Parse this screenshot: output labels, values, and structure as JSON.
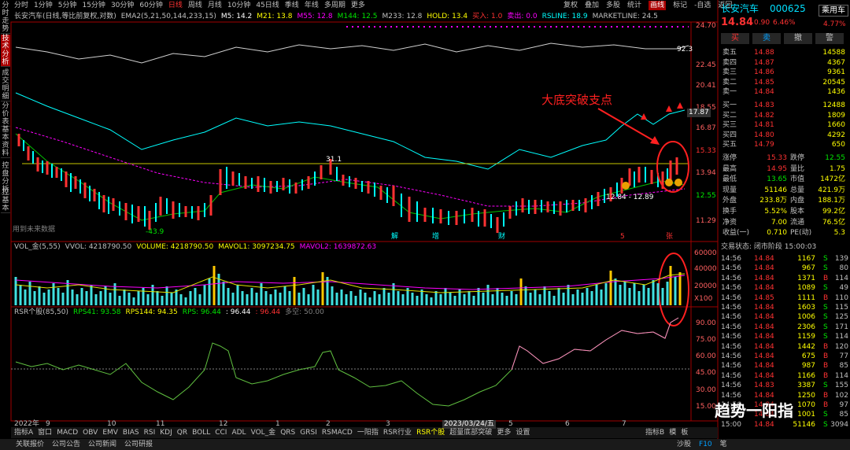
{
  "sidebar": [
    "分时走势",
    "技术分析",
    "成交明细",
    "分价表",
    "基本资料",
    "控盘分析",
    "控基本"
  ],
  "toolbar": {
    "left": [
      "分时",
      "1分钟",
      "5分钟",
      "15分钟",
      "30分钟",
      "60分钟",
      "日线",
      "周线",
      "月线",
      "10分钟",
      "45日线",
      "季线",
      "年线",
      "多周期",
      "更多"
    ],
    "right": [
      "复权",
      "叠加",
      "多股",
      "统计",
      "画线",
      "标记",
      "-自选",
      "返回"
    ]
  },
  "indicator_line": [
    {
      "text": "长安汽车(日线,等比前复权,对数)",
      "color": "#c0c0c0"
    },
    {
      "text": "EMA2(5,21,50,144,233,15)",
      "color": "#c0c0c0"
    },
    {
      "text": "M5: 14.2",
      "color": "#ffffff"
    },
    {
      "text": "M21: 13.8",
      "color": "#ffff00"
    },
    {
      "text": "M55: 12.8",
      "color": "#ff00ff"
    },
    {
      "text": "M144: 12.5",
      "color": "#00e600"
    },
    {
      "text": "M233: 12.8",
      "color": "#c0c0c0"
    },
    {
      "text": "HOLD: 13.4",
      "color": "#ffff00"
    },
    {
      "text": "买入: 1.0",
      "color": "#ff3232"
    },
    {
      "text": "卖出: 0.0",
      "color": "#ff00ff"
    },
    {
      "text": "RSLINE: 18.9",
      "color": "#00ffff"
    },
    {
      "text": "MARKETLINE: 24.5",
      "color": "#c0c0c0"
    }
  ],
  "price_axis": [
    "24.70",
    "22.45",
    "20.41",
    "18.55",
    "16.87",
    "15.33",
    "13.94",
    "12.55",
    "11.29"
  ],
  "chart_annotations": {
    "headline": "大底突破支点",
    "high_label": "31.1",
    "low_label": "-43.9",
    "range_label": "12.84 - 12.89",
    "market_label": "92.3",
    "rs_label": "17.87",
    "future_note": "用到未来数据",
    "events": [
      "解",
      "增",
      "财",
      "5",
      "张"
    ]
  },
  "volume_line": [
    {
      "text": "VOL_金(5,55)",
      "color": "#c0c0c0"
    },
    {
      "text": "VVOL: 4218790.50",
      "color": "#c0c0c0"
    },
    {
      "text": "VOLUME: 4218790.50",
      "color": "#ffff00"
    },
    {
      "text": "MAVOL1: 3097234.75",
      "color": "#ffff00"
    },
    {
      "text": "MAVOL2: 1639872.63",
      "color": "#ff00ff"
    }
  ],
  "volume_axis": [
    "60000",
    "40000",
    "20000",
    "X100"
  ],
  "rsr_line": [
    {
      "text": "RSR个股(85,50)",
      "color": "#c0c0c0"
    },
    {
      "text": "RPS41: 93.58",
      "color": "#00e600"
    },
    {
      "text": "RPS144: 94.35",
      "color": "#ffff00"
    },
    {
      "text": "RPS: 96.44",
      "color": "#00e600"
    },
    {
      "text": ": 96.44",
      "color": "#ffffff"
    },
    {
      "text": ": 96.44",
      "color": "#ff3232"
    },
    {
      "text": "多空: 50.00",
      "color": "#808080"
    }
  ],
  "rsr_axis": [
    "90.00",
    "75.00",
    "60.00",
    "45.00",
    "30.00",
    "15.00"
  ],
  "time_axis": [
    "2022年",
    "9",
    "10",
    "11",
    "12",
    "1",
    "2",
    "3",
    "2023/03/24/五",
    "5",
    "6",
    "7"
  ],
  "indicator_tabs": [
    "指标A",
    "窗口",
    "MACD",
    "OBV",
    "EMV",
    "BIAS",
    "RSI",
    "KDJ",
    "QR",
    "BOLL",
    "CCI",
    "ADL",
    "VOL_金",
    "QRS",
    "GRSI",
    "RSMACD",
    "一阳指",
    "RSR行业",
    "RSR个股",
    "超量底部突破",
    "更多",
    "设置"
  ],
  "indicator_tabs_right": [
    "指标B",
    "模",
    "板"
  ],
  "footer": [
    "关联报价",
    "公司公告",
    "公司新闻",
    "公司研报"
  ],
  "footer_right": [
    "沙股",
    "F10",
    "笔"
  ],
  "quote": {
    "name": "长安汽车",
    "code": "000625",
    "price": "14.84",
    "change": "0.90",
    "change_pct": "6.46%",
    "sector": "乘用车",
    "sector_pct": "4.77%",
    "buttons": [
      "买",
      "卖",
      "撤",
      "警"
    ]
  },
  "order_book": [
    [
      "卖五",
      "14.88",
      "14588"
    ],
    [
      "卖四",
      "14.87",
      "4367"
    ],
    [
      "卖三",
      "14.86",
      "9361"
    ],
    [
      "卖二",
      "14.85",
      "20545"
    ],
    [
      "卖一",
      "14.84",
      "1436"
    ],
    [
      "买一",
      "14.83",
      "12488"
    ],
    [
      "买二",
      "14.82",
      "1809"
    ],
    [
      "买三",
      "14.81",
      "1660"
    ],
    [
      "买四",
      "14.80",
      "4292"
    ],
    [
      "买五",
      "14.79",
      "650"
    ]
  ],
  "stats": [
    [
      "涨停",
      "15.33",
      "跌停",
      "12.55"
    ],
    [
      "最高",
      "14.95",
      "量比",
      "1.75"
    ],
    [
      "最低",
      "13.65",
      "市值",
      "1472亿"
    ],
    [
      "现量",
      "51146",
      "总量",
      "421.9万"
    ],
    [
      "外盘",
      "233.8万",
      "内盘",
      "188.1万"
    ],
    [
      "换手",
      "5.52%",
      "股本",
      "99.2亿"
    ],
    [
      "净资",
      "7.00",
      "流通",
      "76.5亿"
    ],
    [
      "收益(一)",
      "0.710",
      "PE(动)",
      "5.3"
    ]
  ],
  "trade_status": "交易状态: 闭市阶段 15:00:03",
  "ticks": [
    [
      "14:56",
      "14.84",
      "1167",
      "S",
      "139"
    ],
    [
      "14:56",
      "14.84",
      "967",
      "S",
      "80"
    ],
    [
      "14:56",
      "14.84",
      "1371",
      "B",
      "114"
    ],
    [
      "14:56",
      "14.84",
      "1089",
      "S",
      "49"
    ],
    [
      "14:56",
      "14.85",
      "1111",
      "B",
      "110"
    ],
    [
      "14:56",
      "14.84",
      "1603",
      "S",
      "115"
    ],
    [
      "14:56",
      "14.84",
      "1006",
      "S",
      "125"
    ],
    [
      "14:56",
      "14.84",
      "2306",
      "S",
      "171"
    ],
    [
      "14:56",
      "14.84",
      "1159",
      "S",
      "114"
    ],
    [
      "14:56",
      "14.84",
      "1442",
      "B",
      "120"
    ],
    [
      "14:56",
      "14.84",
      "675",
      "B",
      "77"
    ],
    [
      "14:56",
      "14.84",
      "987",
      "B",
      "85"
    ],
    [
      "14:56",
      "14.84",
      "1166",
      "B",
      "114"
    ],
    [
      "14:56",
      "14.83",
      "3387",
      "S",
      "155"
    ],
    [
      "14:56",
      "14.84",
      "1250",
      "B",
      "102"
    ],
    [
      "14:56",
      "14.84",
      "1070",
      "B",
      "97"
    ],
    [
      "14:56",
      "14.84",
      "1001",
      "S",
      "85"
    ],
    [
      "15:00",
      "14.84",
      "51146",
      "S",
      "3094"
    ]
  ],
  "watermark": "趋势一阳指"
}
